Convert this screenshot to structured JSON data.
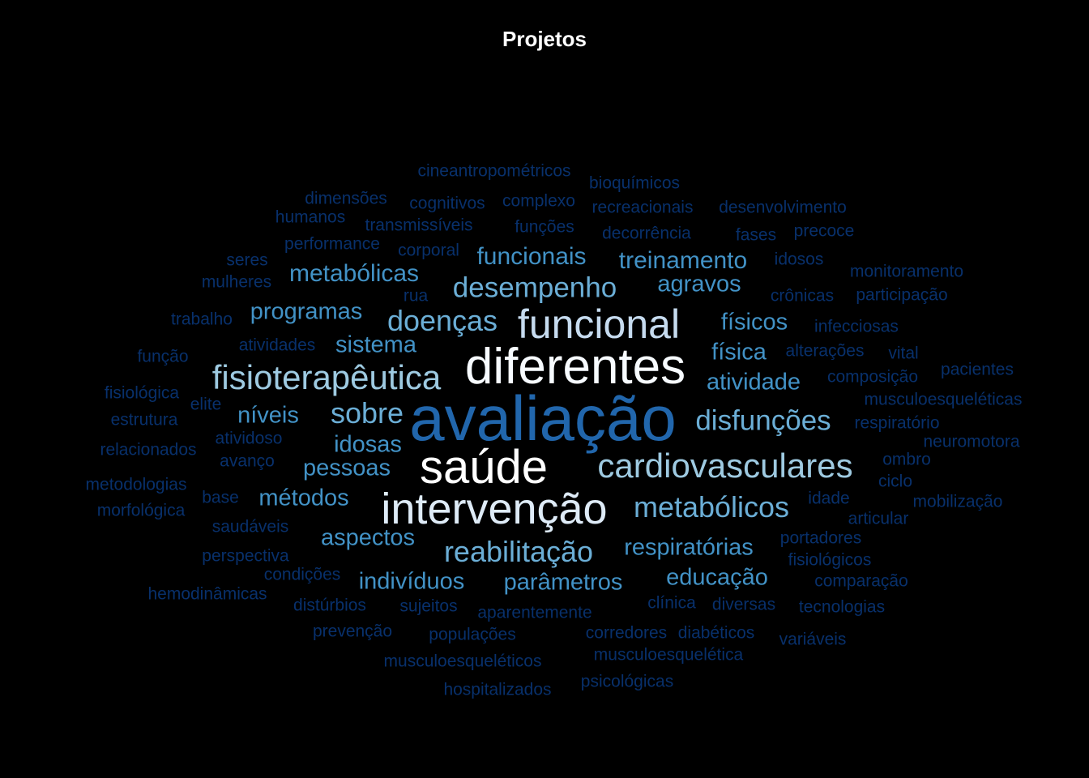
{
  "chart_data": {
    "type": "wordcloud",
    "title": "Projetos",
    "words": [
      {
        "text": "avaliação",
        "weight": 10,
        "color": "#2166ac"
      },
      {
        "text": "diferentes",
        "weight": 9,
        "color": "#f7fbff"
      },
      {
        "text": "saúde",
        "weight": 9,
        "color": "#ffffff"
      },
      {
        "text": "intervenção",
        "weight": 9,
        "color": "#deebf7"
      },
      {
        "text": "funcional",
        "weight": 8,
        "color": "#c6dbef"
      },
      {
        "text": "fisioterapêutica",
        "weight": 7,
        "color": "#9ecae1"
      },
      {
        "text": "cardiovasculares",
        "weight": 7,
        "color": "#9ecae1"
      },
      {
        "text": "desempenho",
        "weight": 6,
        "color": "#6baed6"
      },
      {
        "text": "doenças",
        "weight": 6,
        "color": "#6baed6"
      },
      {
        "text": "reabilitação",
        "weight": 6,
        "color": "#6baed6"
      },
      {
        "text": "metabólicos",
        "weight": 6,
        "color": "#6baed6"
      },
      {
        "text": "disfunções",
        "weight": 6,
        "color": "#6baed6"
      },
      {
        "text": "sobre",
        "weight": 6,
        "color": "#6baed6"
      },
      {
        "text": "funcionais",
        "weight": 5,
        "color": "#4292c6"
      },
      {
        "text": "metabólicas",
        "weight": 5,
        "color": "#4292c6"
      },
      {
        "text": "treinamento",
        "weight": 5,
        "color": "#4292c6"
      },
      {
        "text": "agravos",
        "weight": 5,
        "color": "#4292c6"
      },
      {
        "text": "programas",
        "weight": 5,
        "color": "#4292c6"
      },
      {
        "text": "físicos",
        "weight": 5,
        "color": "#4292c6"
      },
      {
        "text": "sistema",
        "weight": 5,
        "color": "#4292c6"
      },
      {
        "text": "física",
        "weight": 5,
        "color": "#4292c6"
      },
      {
        "text": "atividade",
        "weight": 5,
        "color": "#4292c6"
      },
      {
        "text": "níveis",
        "weight": 5,
        "color": "#4292c6"
      },
      {
        "text": "idosas",
        "weight": 5,
        "color": "#4292c6"
      },
      {
        "text": "pessoas",
        "weight": 5,
        "color": "#4292c6"
      },
      {
        "text": "métodos",
        "weight": 5,
        "color": "#4292c6"
      },
      {
        "text": "aspectos",
        "weight": 5,
        "color": "#4292c6"
      },
      {
        "text": "respiratórias",
        "weight": 5,
        "color": "#4292c6"
      },
      {
        "text": "indivíduos",
        "weight": 5,
        "color": "#4292c6"
      },
      {
        "text": "parâmetros",
        "weight": 5,
        "color": "#4292c6"
      },
      {
        "text": "educação",
        "weight": 5,
        "color": "#4292c6"
      },
      {
        "text": "cineantropométricos",
        "weight": 3,
        "color": "#08306b"
      },
      {
        "text": "bioquímicos",
        "weight": 3,
        "color": "#08306b"
      },
      {
        "text": "dimensões",
        "weight": 3,
        "color": "#08306b"
      },
      {
        "text": "cognitivos",
        "weight": 3,
        "color": "#08306b"
      },
      {
        "text": "complexo",
        "weight": 3,
        "color": "#08306b"
      },
      {
        "text": "recreacionais",
        "weight": 3,
        "color": "#08306b"
      },
      {
        "text": "desenvolvimento",
        "weight": 3,
        "color": "#08306b"
      },
      {
        "text": "humanos",
        "weight": 3,
        "color": "#08306b"
      },
      {
        "text": "transmissíveis",
        "weight": 3,
        "color": "#08306b"
      },
      {
        "text": "funções",
        "weight": 3,
        "color": "#08306b"
      },
      {
        "text": "decorrência",
        "weight": 3,
        "color": "#08306b"
      },
      {
        "text": "fases",
        "weight": 3,
        "color": "#08306b"
      },
      {
        "text": "precoce",
        "weight": 3,
        "color": "#08306b"
      },
      {
        "text": "performance",
        "weight": 3,
        "color": "#08306b"
      },
      {
        "text": "corporal",
        "weight": 3,
        "color": "#08306b"
      },
      {
        "text": "seres",
        "weight": 3,
        "color": "#08306b"
      },
      {
        "text": "idosos",
        "weight": 3,
        "color": "#08306b"
      },
      {
        "text": "monitoramento",
        "weight": 3,
        "color": "#08306b"
      },
      {
        "text": "mulheres",
        "weight": 3,
        "color": "#08306b"
      },
      {
        "text": "rua",
        "weight": 3,
        "color": "#08306b"
      },
      {
        "text": "crônicas",
        "weight": 3,
        "color": "#08306b"
      },
      {
        "text": "participação",
        "weight": 3,
        "color": "#08306b"
      },
      {
        "text": "trabalho",
        "weight": 3,
        "color": "#08306b"
      },
      {
        "text": "infecciosas",
        "weight": 3,
        "color": "#08306b"
      },
      {
        "text": "atividades",
        "weight": 3,
        "color": "#08306b"
      },
      {
        "text": "função",
        "weight": 3,
        "color": "#08306b"
      },
      {
        "text": "alterações",
        "weight": 3,
        "color": "#08306b"
      },
      {
        "text": "vital",
        "weight": 3,
        "color": "#08306b"
      },
      {
        "text": "composição",
        "weight": 3,
        "color": "#08306b"
      },
      {
        "text": "pacientes",
        "weight": 3,
        "color": "#08306b"
      },
      {
        "text": "fisiológica",
        "weight": 3,
        "color": "#08306b"
      },
      {
        "text": "elite",
        "weight": 3,
        "color": "#08306b"
      },
      {
        "text": "musculoesqueléticas",
        "weight": 3,
        "color": "#08306b"
      },
      {
        "text": "estrutura",
        "weight": 3,
        "color": "#08306b"
      },
      {
        "text": "respiratório",
        "weight": 3,
        "color": "#08306b"
      },
      {
        "text": "atividoso",
        "weight": 3,
        "color": "#08306b"
      },
      {
        "text": "neuromotora",
        "weight": 3,
        "color": "#08306b"
      },
      {
        "text": "relacionados",
        "weight": 3,
        "color": "#08306b"
      },
      {
        "text": "avanço",
        "weight": 3,
        "color": "#08306b"
      },
      {
        "text": "ombro",
        "weight": 3,
        "color": "#08306b"
      },
      {
        "text": "ciclo",
        "weight": 3,
        "color": "#08306b"
      },
      {
        "text": "metodologias",
        "weight": 3,
        "color": "#08306b"
      },
      {
        "text": "base",
        "weight": 3,
        "color": "#08306b"
      },
      {
        "text": "idade",
        "weight": 3,
        "color": "#08306b"
      },
      {
        "text": "mobilização",
        "weight": 3,
        "color": "#08306b"
      },
      {
        "text": "morfológica",
        "weight": 3,
        "color": "#08306b"
      },
      {
        "text": "articular",
        "weight": 3,
        "color": "#08306b"
      },
      {
        "text": "saudáveis",
        "weight": 3,
        "color": "#08306b"
      },
      {
        "text": "portadores",
        "weight": 3,
        "color": "#08306b"
      },
      {
        "text": "perspectiva",
        "weight": 3,
        "color": "#08306b"
      },
      {
        "text": "fisiológicos",
        "weight": 3,
        "color": "#08306b"
      },
      {
        "text": "condições",
        "weight": 3,
        "color": "#08306b"
      },
      {
        "text": "comparação",
        "weight": 3,
        "color": "#08306b"
      },
      {
        "text": "hemodinâmicas",
        "weight": 3,
        "color": "#08306b"
      },
      {
        "text": "distúrbios",
        "weight": 3,
        "color": "#08306b"
      },
      {
        "text": "sujeitos",
        "weight": 3,
        "color": "#08306b"
      },
      {
        "text": "aparentemente",
        "weight": 3,
        "color": "#08306b"
      },
      {
        "text": "clínica",
        "weight": 3,
        "color": "#08306b"
      },
      {
        "text": "diversas",
        "weight": 3,
        "color": "#08306b"
      },
      {
        "text": "tecnologias",
        "weight": 3,
        "color": "#08306b"
      },
      {
        "text": "prevenção",
        "weight": 3,
        "color": "#08306b"
      },
      {
        "text": "populações",
        "weight": 3,
        "color": "#08306b"
      },
      {
        "text": "corredores",
        "weight": 3,
        "color": "#08306b"
      },
      {
        "text": "diabéticos",
        "weight": 3,
        "color": "#08306b"
      },
      {
        "text": "variáveis",
        "weight": 3,
        "color": "#08306b"
      },
      {
        "text": "musculoesqueléticos",
        "weight": 3,
        "color": "#08306b"
      },
      {
        "text": "musculoesquelética",
        "weight": 3,
        "color": "#08306b"
      },
      {
        "text": "hospitalizados",
        "weight": 3,
        "color": "#08306b"
      },
      {
        "text": "psicológicas",
        "weight": 3,
        "color": "#08306b"
      }
    ]
  }
}
